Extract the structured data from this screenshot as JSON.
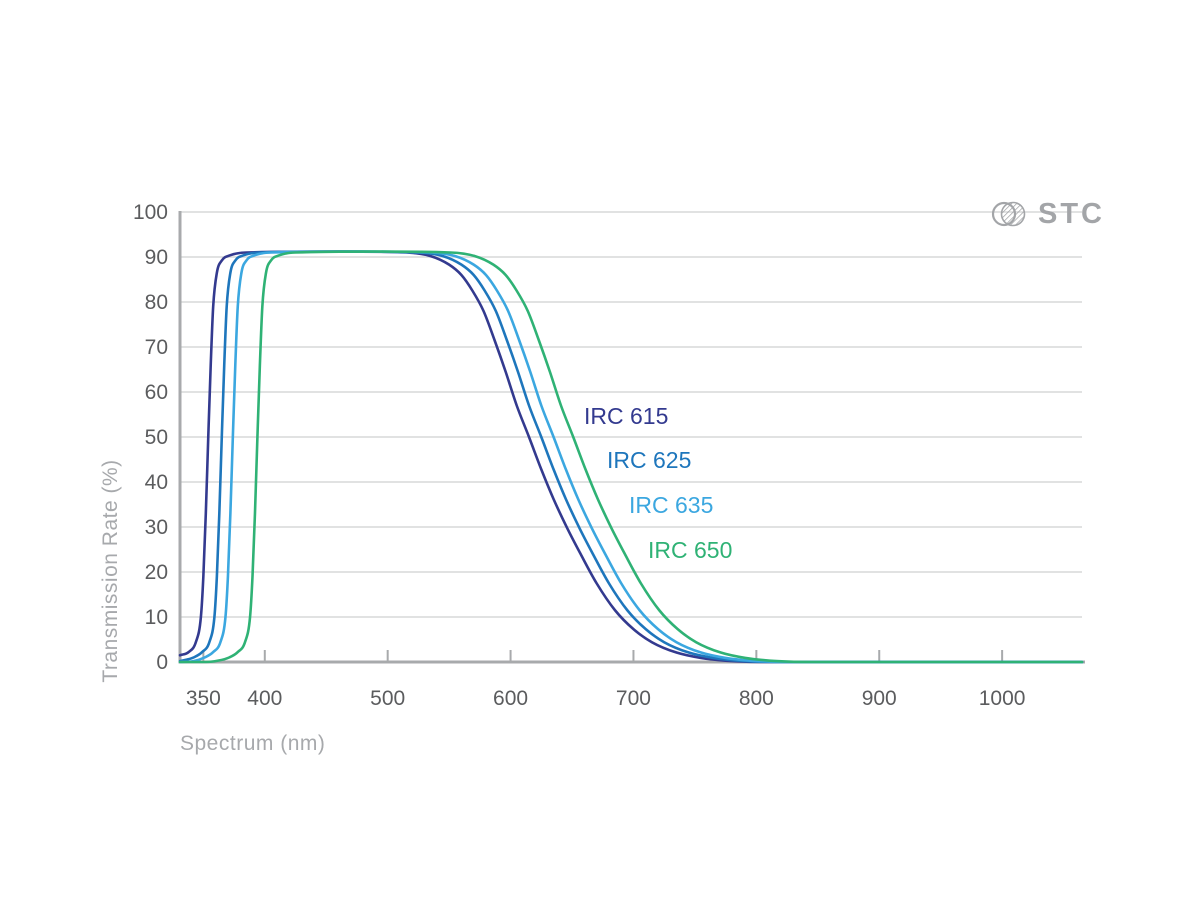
{
  "logo": {
    "text": "STC"
  },
  "colors": {
    "background": "#ffffff",
    "grid": "#d7d8d9",
    "axis": "#a8aaac",
    "tick_label": "#5b5c5e",
    "axis_title": "#a7a9ac",
    "logo": "#a3a5a8"
  },
  "chart_data": {
    "type": "line",
    "title": "",
    "xlabel": "Spectrum (nm)",
    "ylabel": "Transmission Rate (%)",
    "xlim": [
      331,
      1065
    ],
    "ylim": [
      0,
      100
    ],
    "xticks": [
      350,
      400,
      500,
      600,
      700,
      800,
      900,
      1000
    ],
    "yticks": [
      0,
      10,
      20,
      30,
      40,
      50,
      60,
      70,
      80,
      90,
      100
    ],
    "grid": "horizontal-only",
    "legend_position": "inside-right-of-falling-edges",
    "plateau_transmission_pct": 91,
    "series": [
      {
        "name": "IRC 615",
        "color": "#333a8f",
        "cut_on_nm": 354,
        "cut_off_nm": 615,
        "points": [
          [
            331,
            1.5
          ],
          [
            338,
            2.2
          ],
          [
            344,
            4.5
          ],
          [
            348,
            10
          ],
          [
            350,
            19
          ],
          [
            352,
            33
          ],
          [
            354,
            50
          ],
          [
            356,
            66
          ],
          [
            358,
            79
          ],
          [
            361,
            86.5
          ],
          [
            365,
            89.2
          ],
          [
            372,
            90.4
          ],
          [
            385,
            91
          ],
          [
            460,
            91.2
          ],
          [
            515,
            91
          ],
          [
            535,
            90.2
          ],
          [
            550,
            88.3
          ],
          [
            560,
            86
          ],
          [
            569,
            82.5
          ],
          [
            578,
            78
          ],
          [
            587,
            71.5
          ],
          [
            596,
            64.5
          ],
          [
            605,
            57
          ],
          [
            615,
            50
          ],
          [
            625,
            42.8
          ],
          [
            635,
            36.2
          ],
          [
            646,
            29.8
          ],
          [
            657,
            24
          ],
          [
            670,
            17.5
          ],
          [
            685,
            11.5
          ],
          [
            700,
            7.3
          ],
          [
            715,
            4.4
          ],
          [
            735,
            2.1
          ],
          [
            755,
            0.9
          ],
          [
            775,
            0.3
          ],
          [
            792,
            0.08
          ],
          [
            820,
            0
          ],
          [
            1065,
            0
          ]
        ]
      },
      {
        "name": "IRC 625",
        "color": "#1e76bc",
        "cut_on_nm": 365,
        "cut_off_nm": 625,
        "points": [
          [
            331,
            0.2
          ],
          [
            336,
            0.5
          ],
          [
            342,
            1.0
          ],
          [
            349,
            2.2
          ],
          [
            355,
            4.5
          ],
          [
            359,
            10
          ],
          [
            361,
            19
          ],
          [
            363,
            33
          ],
          [
            365,
            50
          ],
          [
            367,
            66
          ],
          [
            369,
            79
          ],
          [
            372,
            86.5
          ],
          [
            376,
            89.2
          ],
          [
            383,
            90.4
          ],
          [
            396,
            91
          ],
          [
            468,
            91.2
          ],
          [
            525,
            91
          ],
          [
            545,
            90.2
          ],
          [
            560,
            88.3
          ],
          [
            570,
            86
          ],
          [
            579,
            82.5
          ],
          [
            588,
            78
          ],
          [
            597,
            71.5
          ],
          [
            606,
            64.5
          ],
          [
            615,
            57
          ],
          [
            625,
            50
          ],
          [
            635,
            42.8
          ],
          [
            645,
            36.2
          ],
          [
            656,
            29.8
          ],
          [
            667,
            24
          ],
          [
            680,
            17.5
          ],
          [
            695,
            11.5
          ],
          [
            710,
            7.3
          ],
          [
            725,
            4.4
          ],
          [
            745,
            2.1
          ],
          [
            765,
            0.9
          ],
          [
            785,
            0.3
          ],
          [
            802,
            0.08
          ],
          [
            830,
            0
          ],
          [
            1065,
            0
          ]
        ]
      },
      {
        "name": "IRC 635",
        "color": "#3ba7e0",
        "cut_on_nm": 374,
        "cut_off_nm": 635,
        "points": [
          [
            331,
            0
          ],
          [
            342,
            0.2
          ],
          [
            351,
            1.0
          ],
          [
            358,
            2.2
          ],
          [
            364,
            4.5
          ],
          [
            368,
            10
          ],
          [
            370,
            19
          ],
          [
            372,
            33
          ],
          [
            374,
            50
          ],
          [
            376,
            66
          ],
          [
            378,
            79
          ],
          [
            381,
            86.5
          ],
          [
            385,
            89.2
          ],
          [
            392,
            90.4
          ],
          [
            405,
            91
          ],
          [
            477,
            91.2
          ],
          [
            535,
            91
          ],
          [
            555,
            90.2
          ],
          [
            570,
            88.3
          ],
          [
            580,
            86
          ],
          [
            589,
            82.5
          ],
          [
            598,
            78
          ],
          [
            607,
            71.5
          ],
          [
            616,
            64.5
          ],
          [
            625,
            57
          ],
          [
            635,
            50
          ],
          [
            645,
            42.8
          ],
          [
            655,
            36.2
          ],
          [
            666,
            29.8
          ],
          [
            677,
            24
          ],
          [
            690,
            17.5
          ],
          [
            705,
            11.5
          ],
          [
            720,
            7.3
          ],
          [
            735,
            4.4
          ],
          [
            755,
            2.1
          ],
          [
            775,
            0.9
          ],
          [
            795,
            0.3
          ],
          [
            812,
            0.08
          ],
          [
            840,
            0
          ],
          [
            1065,
            0
          ]
        ]
      },
      {
        "name": "IRC 650",
        "color": "#2fb275",
        "cut_on_nm": 394,
        "cut_off_nm": 651,
        "points": [
          [
            331,
            0
          ],
          [
            352,
            0
          ],
          [
            362,
            0.3
          ],
          [
            371,
            1.0
          ],
          [
            378,
            2.2
          ],
          [
            384,
            4.5
          ],
          [
            388,
            10
          ],
          [
            390,
            19
          ],
          [
            392,
            33
          ],
          [
            394,
            50
          ],
          [
            396,
            66
          ],
          [
            398,
            79
          ],
          [
            401,
            86.5
          ],
          [
            405,
            89.2
          ],
          [
            412,
            90.4
          ],
          [
            425,
            91
          ],
          [
            490,
            91.2
          ],
          [
            551,
            91
          ],
          [
            571,
            90.2
          ],
          [
            586,
            88.3
          ],
          [
            596,
            86
          ],
          [
            605,
            82.5
          ],
          [
            614,
            78
          ],
          [
            623,
            71.5
          ],
          [
            632,
            64.5
          ],
          [
            641,
            57
          ],
          [
            651,
            50
          ],
          [
            661,
            42.8
          ],
          [
            671,
            36.2
          ],
          [
            682,
            29.8
          ],
          [
            693,
            24
          ],
          [
            706,
            17.5
          ],
          [
            721,
            11.5
          ],
          [
            736,
            7.3
          ],
          [
            751,
            4.4
          ],
          [
            771,
            2.1
          ],
          [
            791,
            0.9
          ],
          [
            811,
            0.3
          ],
          [
            828,
            0.08
          ],
          [
            856,
            0
          ],
          [
            1065,
            0
          ]
        ]
      }
    ]
  }
}
